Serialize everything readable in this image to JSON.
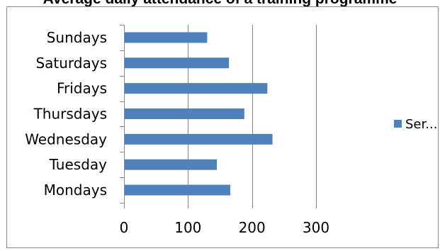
{
  "header": {
    "title_fragment": "Average daily attendance of a training programme"
  },
  "colors": {
    "bar": "#4f81bd",
    "grid": "#868686",
    "frame": "#8c8c8c"
  },
  "chart_data": {
    "type": "bar",
    "orientation": "horizontal",
    "title": "",
    "xlabel": "",
    "ylabel": "",
    "categories": [
      "Mondays",
      "Tuesday",
      "Wednesday",
      "Thursdays",
      "Fridays",
      "Saturdays",
      "Sundays"
    ],
    "series": [
      {
        "name": "Ser...",
        "values": [
          166,
          145,
          232,
          188,
          224,
          164,
          130
        ]
      }
    ],
    "xlim": [
      0,
      300
    ],
    "xticks": [
      0,
      100,
      200,
      300
    ],
    "grid": "vertical",
    "legend": "right"
  }
}
